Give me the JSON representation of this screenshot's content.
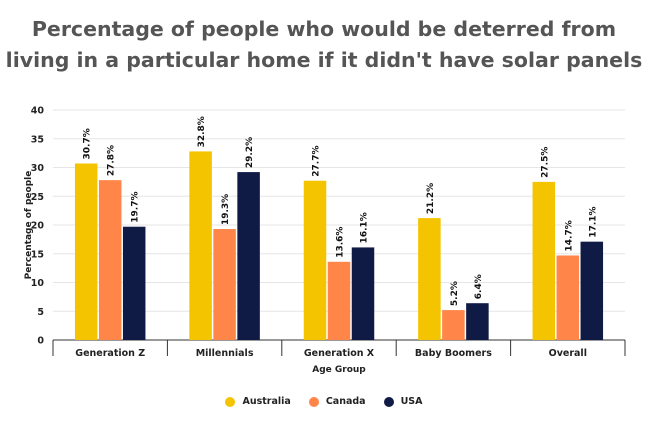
{
  "chart_data": {
    "type": "bar",
    "title_line1": "Percentage of people who would be deterred from",
    "title_line2": "living in a particular home if it didn't have solar panels",
    "xlabel": "Age Group",
    "ylabel": "Percentage of people",
    "ylim": [
      0,
      40
    ],
    "yticks": [
      0,
      5,
      10,
      15,
      20,
      25,
      30,
      35,
      40
    ],
    "grid": true,
    "legend_position": "bottom",
    "categories": [
      "Generation Z",
      "Millennials",
      "Generation X",
      "Baby Boomers",
      "Overall"
    ],
    "series": [
      {
        "name": "Australia",
        "color": "#F5C400",
        "values": [
          30.7,
          32.8,
          27.7,
          21.2,
          27.5
        ],
        "labels": [
          "30.7%",
          "32.8%",
          "27.7%",
          "21.2%",
          "27.5%"
        ]
      },
      {
        "name": "Canada",
        "color": "#FF8548",
        "values": [
          27.8,
          19.3,
          13.6,
          5.2,
          14.7
        ],
        "labels": [
          "27.8%",
          "19.3%",
          "13.6%",
          "5.2%",
          "14.7%"
        ]
      },
      {
        "name": "USA",
        "color": "#0F1A45",
        "values": [
          19.7,
          29.2,
          16.1,
          6.4,
          17.1
        ],
        "labels": [
          "19.7%",
          "29.2%",
          "16.1%",
          "6.4%",
          "17.1%"
        ]
      }
    ]
  }
}
